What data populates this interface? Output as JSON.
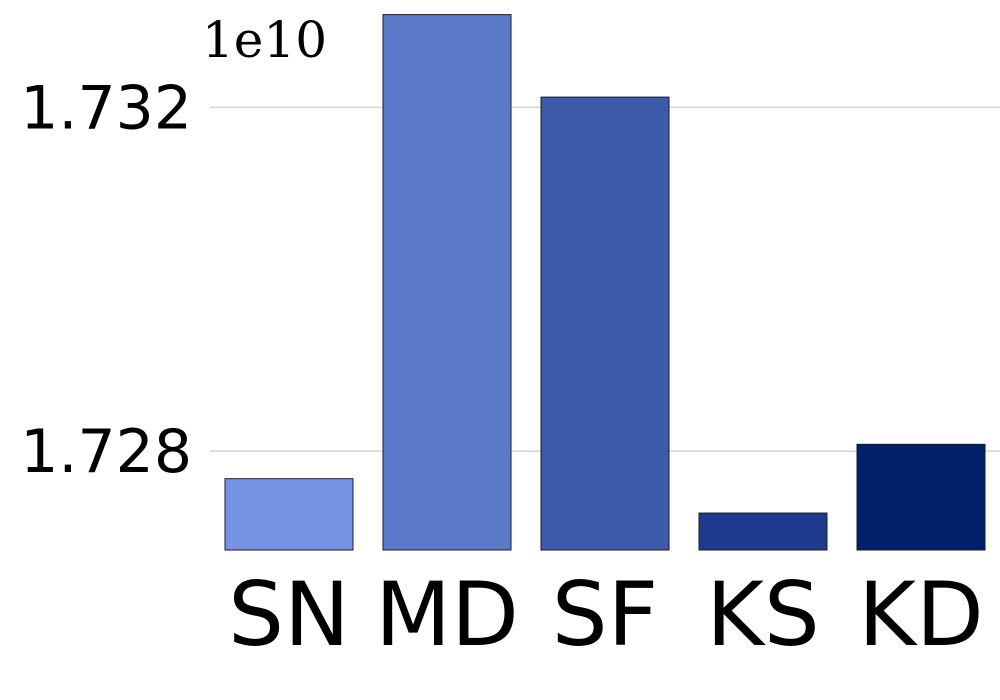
{
  "chart_data": {
    "type": "bar",
    "categories": [
      "SN",
      "MD",
      "SF",
      "KS",
      "KD"
    ],
    "values": [
      1.72768,
      1.73308,
      1.73212,
      1.72728,
      1.72808
    ],
    "colors": [
      "#7793e4",
      "#5a79c8",
      "#3c5aa8",
      "#1f3a8c",
      "#021f6c"
    ],
    "offset_label": "1e10",
    "yticks": [
      {
        "value": 1.728,
        "label": "1.728"
      },
      {
        "value": 1.732,
        "label": "1.732"
      }
    ],
    "ylim": [
      1.72685,
      1.73325
    ],
    "grid": true,
    "title": "",
    "xlabel": "",
    "ylabel": ""
  }
}
